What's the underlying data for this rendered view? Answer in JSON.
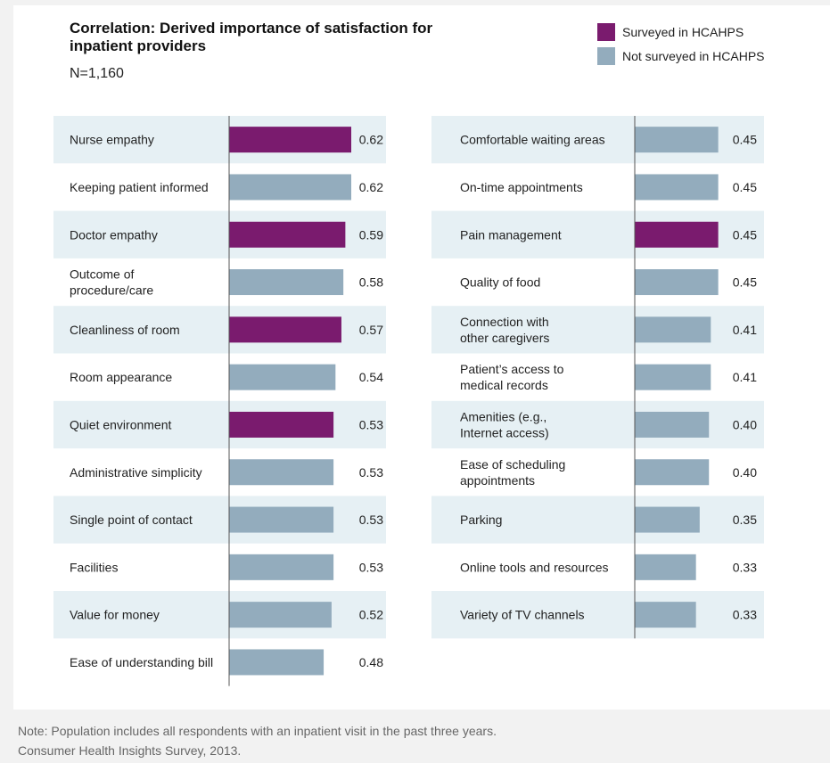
{
  "header": {
    "title": "Correlation: Derived importance of satisfaction for inpatient providers",
    "subtitle": "N=1,160"
  },
  "legend": [
    {
      "label": "Surveyed in HCAHPS",
      "color": "#7a1b6e"
    },
    {
      "label": "Not surveyed in HCAHPS",
      "color": "#93acbd"
    }
  ],
  "colors": {
    "surveyed": "#7a1b6e",
    "not_surveyed": "#93acbd",
    "row_shade": "#e6f0f4",
    "axis": "#555555"
  },
  "chart_data": [
    {
      "type": "bar",
      "orientation": "horizontal",
      "xlim": [
        0,
        0.62
      ],
      "categories": [
        [
          "Nurse empathy"
        ],
        [
          "Keeping patient informed"
        ],
        [
          "Doctor empathy"
        ],
        [
          "Outcome of",
          "procedure/care"
        ],
        [
          "Cleanliness of room"
        ],
        [
          "Room appearance"
        ],
        [
          "Quiet environment"
        ],
        [
          "Administrative simplicity"
        ],
        [
          "Single point of contact"
        ],
        [
          "Facilities"
        ],
        [
          "Value for money"
        ],
        [
          "Ease of understanding bill"
        ]
      ],
      "values": [
        0.62,
        0.62,
        0.59,
        0.58,
        0.57,
        0.54,
        0.53,
        0.53,
        0.53,
        0.53,
        0.52,
        0.48
      ],
      "value_labels": [
        "0.62",
        "0.62",
        "0.59",
        "0.58",
        "0.57",
        "0.54",
        "0.53",
        "0.53",
        "0.53",
        "0.53",
        "0.52",
        "0.48"
      ],
      "surveyed": [
        true,
        false,
        true,
        false,
        true,
        false,
        true,
        false,
        false,
        false,
        false,
        false
      ]
    },
    {
      "type": "bar",
      "orientation": "horizontal",
      "xlim": [
        0,
        0.62
      ],
      "categories": [
        [
          "Comfortable waiting areas"
        ],
        [
          "On-time appointments"
        ],
        [
          "Pain management"
        ],
        [
          "Quality of food"
        ],
        [
          "Connection with",
          "other caregivers"
        ],
        [
          "Patient’s access to",
          "medical records"
        ],
        [
          "Amenities (e.g.,",
          "Internet access)"
        ],
        [
          "Ease of scheduling",
          "appointments"
        ],
        [
          "Parking"
        ],
        [
          "Online tools and resources"
        ],
        [
          "Variety of TV channels"
        ]
      ],
      "values": [
        0.45,
        0.45,
        0.45,
        0.45,
        0.41,
        0.41,
        0.4,
        0.4,
        0.35,
        0.33,
        0.33
      ],
      "value_labels": [
        "0.45",
        "0.45",
        "0.45",
        "0.45",
        "0.41",
        "0.41",
        "0.40",
        "0.40",
        "0.35",
        "0.33",
        "0.33"
      ],
      "surveyed": [
        false,
        false,
        true,
        false,
        false,
        false,
        false,
        false,
        false,
        false,
        false
      ]
    }
  ],
  "footer": {
    "note": "Note: Population includes all respondents with an inpatient visit in the past three years.",
    "source": "Consumer Health Insights Survey, 2013."
  }
}
